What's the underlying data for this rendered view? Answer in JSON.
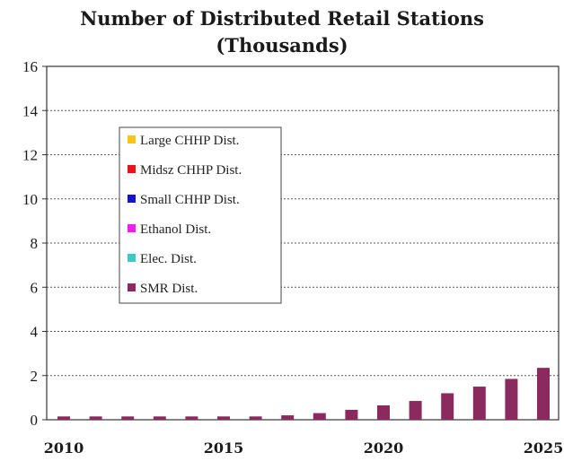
{
  "chart_data": {
    "type": "bar",
    "title_line1": "Number of Distributed Retail Stations",
    "title_line2": "(Thousands)",
    "xlabel": "",
    "ylabel": "",
    "ylim": [
      0,
      16
    ],
    "y_ticks": [
      "0",
      "2",
      "4",
      "6",
      "8",
      "10",
      "12",
      "14",
      "16"
    ],
    "x_tick_labels": [
      "2010",
      "2015",
      "2020",
      "2025"
    ],
    "categories": [
      "2010",
      "2011",
      "2012",
      "2013",
      "2014",
      "2015",
      "2016",
      "2017",
      "2018",
      "2019",
      "2020",
      "2021",
      "2022",
      "2023",
      "2024",
      "2025"
    ],
    "grid": "horizontal dotted",
    "legend_placement": "upper-left inside plot",
    "series": [
      {
        "name": "Large CHHP Dist.",
        "color": "#f5c518",
        "values": [
          0,
          0,
          0,
          0,
          0,
          0,
          0,
          0,
          0,
          0,
          0,
          0,
          0,
          0,
          0,
          0
        ]
      },
      {
        "name": "Midsz CHHP Dist.",
        "color": "#e8141b",
        "values": [
          0,
          0,
          0,
          0,
          0,
          0,
          0,
          0,
          0,
          0,
          0,
          0,
          0,
          0,
          0,
          0
        ]
      },
      {
        "name": "Small CHHP Dist.",
        "color": "#1414c8",
        "values": [
          0,
          0,
          0,
          0,
          0,
          0,
          0,
          0,
          0,
          0,
          0,
          0,
          0,
          0,
          0,
          0
        ]
      },
      {
        "name": "Ethanol Dist.",
        "color": "#ee1fee",
        "values": [
          0,
          0,
          0,
          0,
          0,
          0,
          0,
          0,
          0,
          0,
          0,
          0,
          0,
          0,
          0,
          0
        ]
      },
      {
        "name": "Elec. Dist.",
        "color": "#3cc8c8",
        "values": [
          0,
          0,
          0,
          0,
          0,
          0,
          0,
          0,
          0,
          0,
          0,
          0,
          0,
          0,
          0,
          0
        ]
      },
      {
        "name": "SMR Dist.",
        "color": "#8b2a5e",
        "values": [
          0.15,
          0.15,
          0.15,
          0.15,
          0.15,
          0.15,
          0.15,
          0.2,
          0.3,
          0.45,
          0.65,
          0.85,
          1.2,
          1.5,
          1.85,
          2.35
        ]
      }
    ]
  }
}
